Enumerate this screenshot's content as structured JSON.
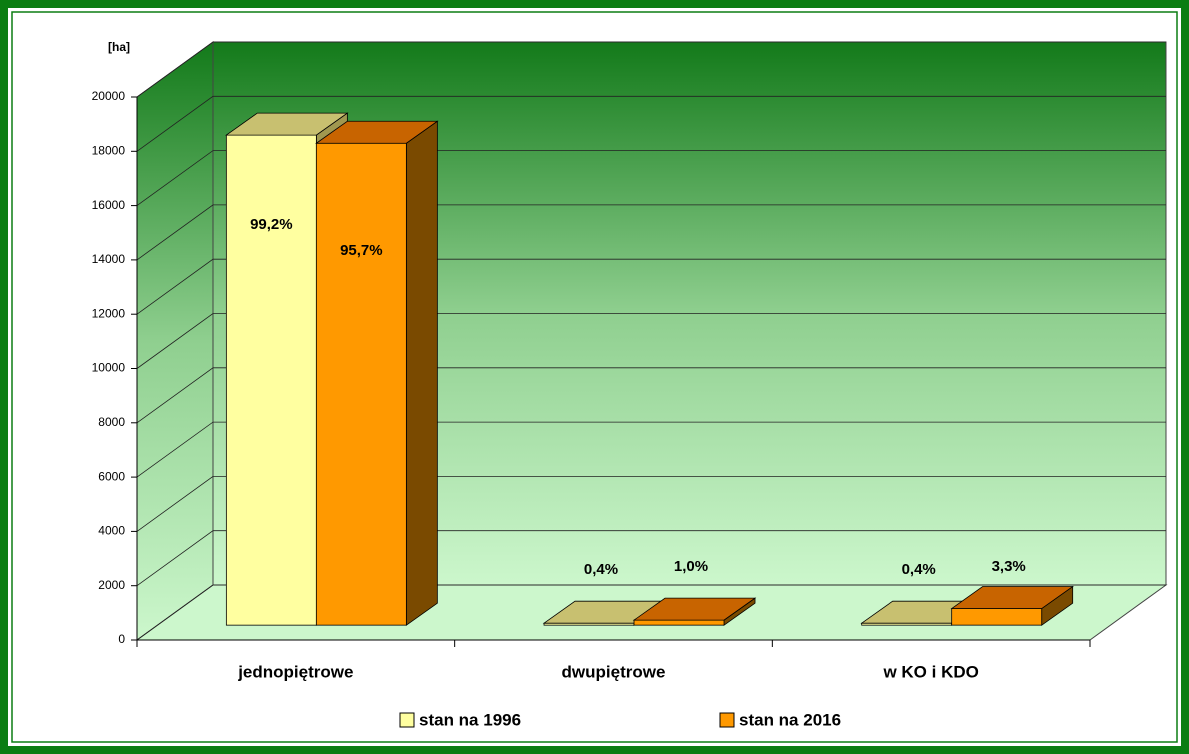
{
  "chart_data": {
    "type": "bar3d",
    "axis_unit": "[ha]",
    "categories": [
      "jednopiętrowe",
      "dwupiętrowe",
      "w KO i KDO"
    ],
    "series": [
      {
        "name": "stan na 1996",
        "color": "#ffffa0",
        "top_color": "#c8c070",
        "side_color": "#a09850",
        "values": [
          18050,
          73,
          73
        ],
        "share_labels": [
          "99,2%",
          "0,4%",
          "0,4%"
        ]
      },
      {
        "name": "stan na 2016",
        "color": "#ff9900",
        "top_color": "#c86400",
        "side_color": "#7a4a00",
        "values": [
          17750,
          185,
          612
        ],
        "share_labels": [
          "95,7%",
          "1,0%",
          "3,3%"
        ]
      }
    ],
    "ylim": [
      0,
      20000
    ],
    "yticks": [
      0,
      2000,
      4000,
      6000,
      8000,
      10000,
      12000,
      14000,
      16000,
      18000,
      20000
    ],
    "grid": true,
    "legend": "bottom"
  }
}
